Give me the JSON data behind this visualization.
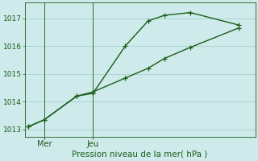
{
  "background_color": "#ceeaea",
  "grid_color": "#aad4d4",
  "line_color": "#1a5e1a",
  "line1_x": [
    0,
    0.5,
    1.5,
    2.0,
    3.0,
    3.7,
    4.2,
    5.0,
    6.5
  ],
  "line1_y": [
    1013.1,
    1013.35,
    1014.2,
    1014.3,
    1016.0,
    1016.9,
    1017.1,
    1017.2,
    1016.75
  ],
  "line2_x": [
    0,
    0.5,
    1.5,
    2.0,
    3.0,
    3.7,
    4.2,
    5.0,
    6.5
  ],
  "line2_y": [
    1013.1,
    1013.35,
    1014.2,
    1014.35,
    1014.85,
    1015.2,
    1015.55,
    1015.95,
    1016.65
  ],
  "ylim": [
    1012.75,
    1017.55
  ],
  "yticks": [
    1013,
    1014,
    1015,
    1016,
    1017
  ],
  "xlabel": "Pression niveau de la mer( hPa )",
  "vline1_x": 0.5,
  "vline2_x": 2.0,
  "xlim": [
    -0.1,
    7.0
  ],
  "mer_x": 0.5,
  "jeu_x": 2.0,
  "marker": "+",
  "markersize": 4,
  "linewidth": 1.0
}
